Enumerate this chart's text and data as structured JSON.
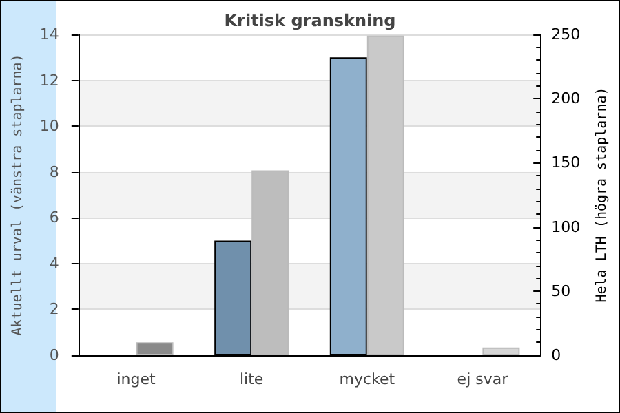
{
  "chart_data": {
    "type": "bar",
    "title": "Kritisk granskning",
    "ylabel": "Aktuellt urval (vänstra staplarna)",
    "y2label": "Hela LTH (högra staplarna)",
    "categories": [
      "inget",
      "lite",
      "mycket",
      "ej svar"
    ],
    "series": [
      {
        "colors": [
          "#7090ac",
          "#7090ac",
          "#8fb0cc",
          "#8fb0cc"
        ],
        "values": [
          0,
          5,
          13,
          0
        ]
      },
      {
        "axis": "y2",
        "colors": [
          "#8a8a8a",
          "#bdbdbd",
          "#c9c9c9",
          "#d6d6d6"
        ],
        "values": [
          10,
          144,
          249,
          6
        ]
      }
    ],
    "ylim": [
      0,
      14
    ],
    "yticks": [
      0,
      2,
      4,
      6,
      8,
      10,
      12,
      14
    ],
    "y2lim": [
      0,
      250
    ],
    "y2ticks": [
      0,
      50,
      100,
      150,
      200,
      250
    ],
    "grid": "y"
  }
}
